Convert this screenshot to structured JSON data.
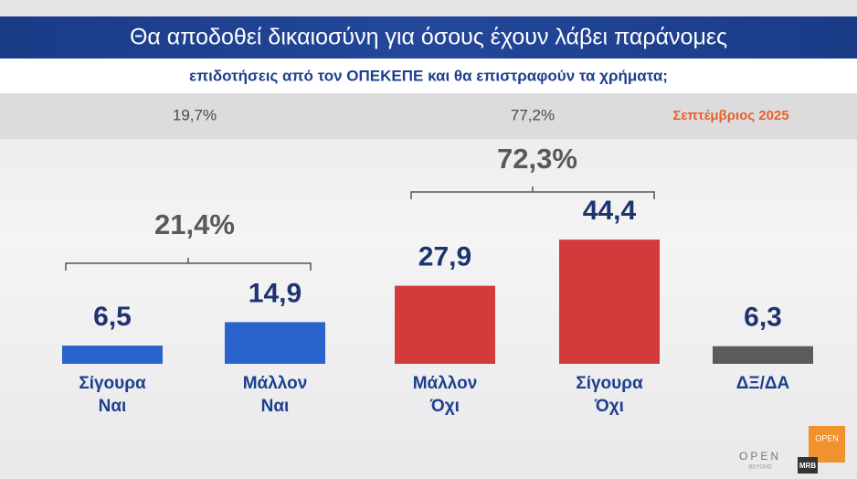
{
  "chart_data": {
    "type": "bar",
    "title": "Θα αποδοθεί δικαιοσύνη για όσους έχουν λάβει παράνομες",
    "subtitle": "επιδοτήσεις από τον ΟΠΕΚΕΠΕ και θα επιστραφούν τα χρήματα;",
    "date": "Σεπτέμβριος 2025",
    "categories": [
      "Σίγουρα Ναι",
      "Μάλλον Ναι",
      "Μάλλον Όχι",
      "Σίγουρα Όχι",
      "ΔΞ/ΔΑ"
    ],
    "values": [
      6.5,
      14.9,
      27.9,
      44.4,
      6.3
    ],
    "value_labels": [
      "6,5",
      "14,9",
      "27,9",
      "44,4",
      "6,3"
    ],
    "colors": [
      "#2a63cc",
      "#2a63cc",
      "#d23a3b",
      "#d23a3b",
      "#5b5b5b"
    ],
    "groups": [
      "21,4%",
      "72,3%"
    ],
    "previous": [
      "19,7%",
      "77,2%"
    ],
    "logos": [
      "OPEN",
      "OPEN",
      "BEYOND",
      "MRB"
    ]
  }
}
